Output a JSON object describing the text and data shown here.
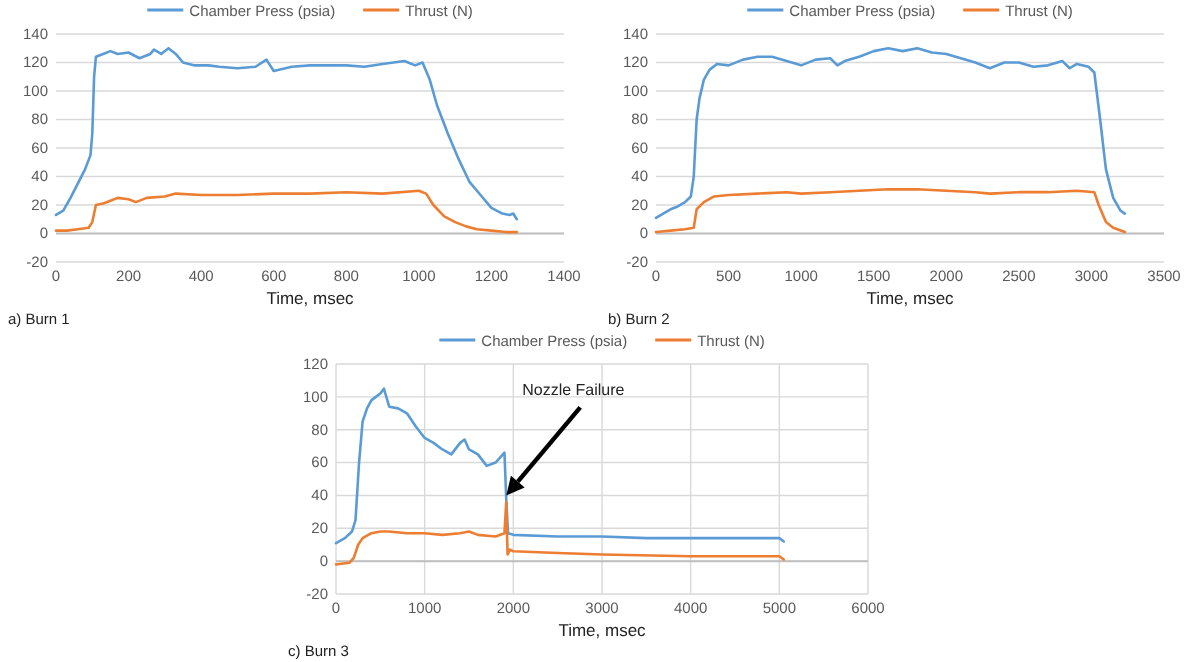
{
  "chart_data": [
    {
      "type": "line",
      "xlabel": "Time, msec",
      "annotations": [
        "a) Burn 1"
      ],
      "xlim": [
        0,
        1400
      ],
      "xticks": [
        0,
        200,
        400,
        600,
        800,
        1000,
        1200,
        1400
      ],
      "ylim": [
        -20,
        140
      ],
      "yticks": [
        -20,
        0,
        20,
        40,
        60,
        80,
        100,
        120,
        140
      ],
      "grid": "y",
      "legend": "top",
      "marker": "none",
      "series": [
        {
          "name": "Chamber Press (psia)",
          "color": "#5b9bd5",
          "x": [
            0,
            20,
            40,
            60,
            80,
            95,
            100,
            105,
            110,
            130,
            150,
            170,
            200,
            230,
            260,
            270,
            290,
            310,
            330,
            350,
            380,
            420,
            450,
            500,
            550,
            580,
            600,
            650,
            700,
            800,
            850,
            900,
            960,
            990,
            1010,
            1030,
            1050,
            1080,
            1110,
            1140,
            1170,
            1200,
            1230,
            1250,
            1260,
            1270
          ],
          "values": [
            13,
            16,
            25,
            35,
            45,
            55,
            70,
            110,
            124,
            126,
            128,
            126,
            127,
            123,
            126,
            129,
            126,
            130,
            126,
            120,
            118,
            118,
            117,
            116,
            117,
            122,
            114,
            117,
            118,
            118,
            117,
            119,
            121,
            118,
            120,
            108,
            90,
            70,
            52,
            36,
            27,
            18,
            14,
            13,
            14,
            10
          ]
        },
        {
          "name": "Thrust (N)",
          "color": "#ed7d31",
          "x": [
            0,
            30,
            60,
            90,
            100,
            110,
            130,
            150,
            170,
            200,
            220,
            250,
            300,
            330,
            400,
            500,
            600,
            700,
            800,
            900,
            1000,
            1020,
            1040,
            1070,
            1100,
            1130,
            1160,
            1200,
            1240,
            1270
          ],
          "values": [
            2,
            2,
            3,
            4,
            8,
            20,
            21,
            23,
            25,
            24,
            22,
            25,
            26,
            28,
            27,
            27,
            28,
            28,
            29,
            28,
            30,
            28,
            20,
            12,
            8,
            5,
            3,
            2,
            1,
            1
          ]
        }
      ]
    },
    {
      "type": "line",
      "xlabel": "Time, msec",
      "annotations": [
        "b) Burn 2"
      ],
      "xlim": [
        0,
        3500
      ],
      "xticks": [
        0,
        500,
        1000,
        1500,
        2000,
        2500,
        3000,
        3500
      ],
      "ylim": [
        -20,
        140
      ],
      "yticks": [
        -20,
        0,
        20,
        40,
        60,
        80,
        100,
        120,
        140
      ],
      "grid": "y",
      "legend": "top",
      "marker": "none",
      "series": [
        {
          "name": "Chamber Press (psia)",
          "color": "#5b9bd5",
          "x": [
            0,
            50,
            100,
            150,
            200,
            240,
            260,
            280,
            300,
            330,
            370,
            420,
            500,
            600,
            700,
            800,
            900,
            1000,
            1100,
            1200,
            1250,
            1300,
            1400,
            1500,
            1600,
            1700,
            1800,
            1900,
            2000,
            2100,
            2200,
            2300,
            2400,
            2500,
            2600,
            2700,
            2800,
            2850,
            2900,
            2980,
            3020,
            3060,
            3100,
            3150,
            3200,
            3230
          ],
          "values": [
            11,
            14,
            17,
            19,
            22,
            26,
            40,
            80,
            95,
            108,
            115,
            119,
            118,
            122,
            124,
            124,
            121,
            118,
            122,
            123,
            118,
            121,
            124,
            128,
            130,
            128,
            130,
            127,
            126,
            123,
            120,
            116,
            120,
            120,
            117,
            118,
            121,
            116,
            119,
            117,
            113,
            80,
            45,
            25,
            16,
            14
          ]
        },
        {
          "name": "Thrust (N)",
          "color": "#ed7d31",
          "x": [
            0,
            100,
            200,
            260,
            280,
            330,
            400,
            500,
            700,
            900,
            1000,
            1200,
            1400,
            1600,
            1800,
            2000,
            2200,
            2300,
            2500,
            2700,
            2900,
            3020,
            3050,
            3100,
            3150,
            3230
          ],
          "values": [
            1,
            2,
            3,
            4,
            17,
            22,
            26,
            27,
            28,
            29,
            28,
            29,
            30,
            31,
            31,
            30,
            29,
            28,
            29,
            29,
            30,
            29,
            20,
            8,
            4,
            1
          ]
        }
      ]
    },
    {
      "type": "line",
      "xlabel": "Time, msec",
      "annotations": [
        "c) Burn 3",
        {
          "text": "Nozzle Failure",
          "x": 1920,
          "y": 40
        }
      ],
      "xlim": [
        0,
        6000
      ],
      "xticks": [
        0,
        1000,
        2000,
        3000,
        4000,
        5000,
        6000
      ],
      "ylim": [
        -20,
        120
      ],
      "yticks": [
        -20,
        0,
        20,
        40,
        60,
        80,
        100,
        120
      ],
      "grid": true,
      "legend": "top",
      "marker": "none",
      "series": [
        {
          "name": "Chamber Press (psia)",
          "color": "#5b9bd5",
          "x": [
            0,
            100,
            180,
            220,
            260,
            300,
            350,
            400,
            450,
            500,
            540,
            600,
            700,
            800,
            900,
            1000,
            1100,
            1200,
            1300,
            1400,
            1450,
            1500,
            1600,
            1700,
            1800,
            1850,
            1900,
            1920,
            1940,
            2000,
            2500,
            3000,
            3500,
            4000,
            4500,
            5000,
            5050
          ],
          "values": [
            11,
            14,
            18,
            25,
            60,
            85,
            93,
            98,
            100,
            102,
            105,
            94,
            93,
            90,
            82,
            75,
            72,
            68,
            65,
            72,
            74,
            68,
            65,
            58,
            60,
            63,
            66,
            38,
            17,
            16,
            15,
            15,
            14,
            14,
            14,
            14,
            12
          ]
        },
        {
          "name": "Thrust (N)",
          "color": "#ed7d31",
          "x": [
            0,
            150,
            200,
            250,
            300,
            400,
            500,
            600,
            800,
            1000,
            1200,
            1400,
            1500,
            1600,
            1800,
            1900,
            1920,
            1935,
            1960,
            2000,
            2500,
            3000,
            4000,
            5000,
            5050
          ],
          "values": [
            -2,
            -1,
            2,
            10,
            14,
            17,
            18,
            18,
            17,
            17,
            16,
            17,
            18,
            16,
            15,
            17,
            36,
            4,
            7,
            6,
            5,
            4,
            3,
            3,
            1
          ]
        }
      ]
    }
  ]
}
